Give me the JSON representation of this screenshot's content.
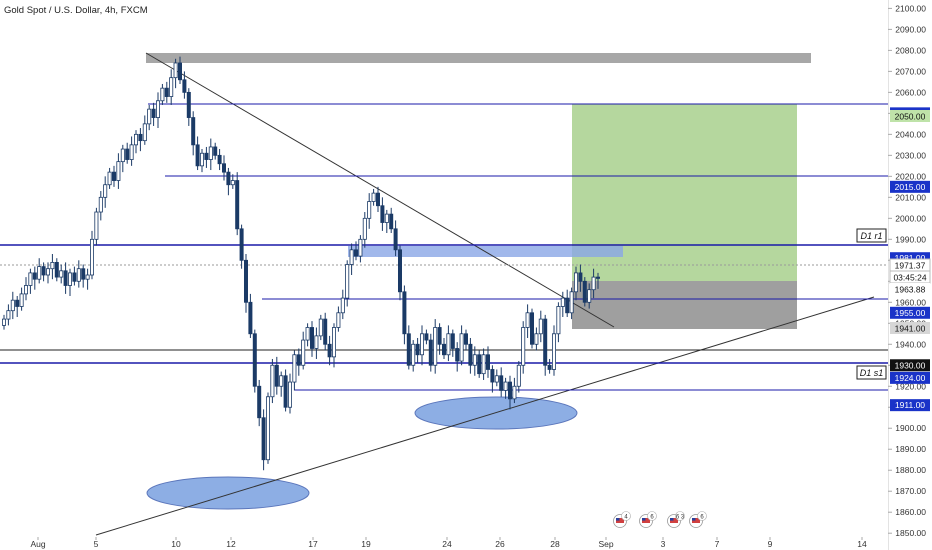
{
  "header": {
    "symbol_title": "Gold Spot / U.S. Dollar, 4h, FXCM"
  },
  "colors": {
    "up_fill": "#ffffff",
    "candle": "#1b3a66",
    "hline": "#1a1aa8",
    "price_tag": "#1a33c8",
    "grey_tag": "#d6d6d6",
    "green_tag": "#bfe3a9",
    "profit_zone": "#a8d08d",
    "loss_zone": "#8e8e8e",
    "ellipse": "#7aa0e0",
    "trendline": "#333333",
    "resistance_bar": "#8a8a8a",
    "blue_zone": "#8aa6e6"
  },
  "chart_data": {
    "type": "candlestick",
    "ylim": [
      1842,
      2104
    ],
    "y_ticks": [
      1850,
      1860,
      1870,
      1880,
      1890,
      1900,
      1910,
      1920,
      1930,
      1940,
      1950,
      1960,
      1970,
      1980,
      1990,
      2000,
      2010,
      2020,
      2030,
      2040,
      2050,
      2060,
      2070,
      2080,
      2090,
      2100
    ],
    "x_labels": [
      "Aug",
      "5",
      "10",
      "12",
      "17",
      "19",
      "24",
      "26",
      "28",
      "Sep",
      "3",
      "7",
      "9",
      "14"
    ],
    "candle_closes": [
      1952,
      1956,
      1961,
      1958,
      1964,
      1968,
      1974,
      1971,
      1977,
      1973,
      1976,
      1979,
      1972,
      1975,
      1968,
      1974,
      1970,
      1976,
      1971,
      1973,
      1990,
      2003,
      2010,
      2016,
      2022,
      2018,
      2027,
      2033,
      2028,
      2035,
      2040,
      2037,
      2045,
      2052,
      2048,
      2056,
      2062,
      2058,
      2067,
      2074,
      2066,
      2060,
      2048,
      2035,
      2025,
      2031,
      2028,
      2034,
      2030,
      2026,
      2022,
      2016,
      2018,
      1995,
      1980,
      1960,
      1945,
      1920,
      1905,
      1885,
      1915,
      1930,
      1920,
      1925,
      1910,
      1922,
      1935,
      1930,
      1942,
      1948,
      1938,
      1944,
      1952,
      1940,
      1934,
      1948,
      1955,
      1962,
      1978,
      1985,
      1982,
      1990,
      2000,
      2008,
      2012,
      2006,
      1998,
      2002,
      1995,
      1985,
      1965,
      1945,
      1930,
      1940,
      1935,
      1945,
      1942,
      1930,
      1948,
      1940,
      1935,
      1945,
      1938,
      1932,
      1945,
      1940,
      1930,
      1935,
      1926,
      1935,
      1928,
      1922,
      1925,
      1918,
      1922,
      1914,
      1920,
      1930,
      1948,
      1955,
      1940,
      1945,
      1952,
      1930,
      1928,
      1945,
      1958,
      1962,
      1955,
      1965,
      1974,
      1970,
      1960,
      1966,
      1972,
      1971.37
    ],
    "levels": [
      {
        "price": 2050,
        "label": "2050.00",
        "style": "tag"
      },
      {
        "price": 2015,
        "label": "2015.00",
        "style": "tag"
      },
      {
        "price": 1981,
        "label": "1981.00",
        "style": "tag"
      },
      {
        "price": 1955,
        "label": "1955.00",
        "style": "tag"
      },
      {
        "price": 1930,
        "label": "1930.00",
        "style": "dark"
      },
      {
        "price": 1924,
        "label": "1924.00",
        "style": "tag"
      },
      {
        "price": 1911,
        "label": "1911.00",
        "style": "tag"
      }
    ],
    "annotations": {
      "r1": "D1 r1",
      "s1": "D1 s1"
    },
    "right_tags": {
      "target": "2050.00",
      "current": "1971.37",
      "countdown": "03:45:24",
      "entry": "1963.88",
      "stop": "1941.00"
    }
  },
  "footer_icons": [
    {
      "name": "flag-icon-1",
      "count": "4"
    },
    {
      "name": "flag-icon-2",
      "count": "6"
    },
    {
      "name": "flag-icon-3",
      "count": "6 3"
    },
    {
      "name": "flag-icon-4",
      "count": "6"
    }
  ]
}
